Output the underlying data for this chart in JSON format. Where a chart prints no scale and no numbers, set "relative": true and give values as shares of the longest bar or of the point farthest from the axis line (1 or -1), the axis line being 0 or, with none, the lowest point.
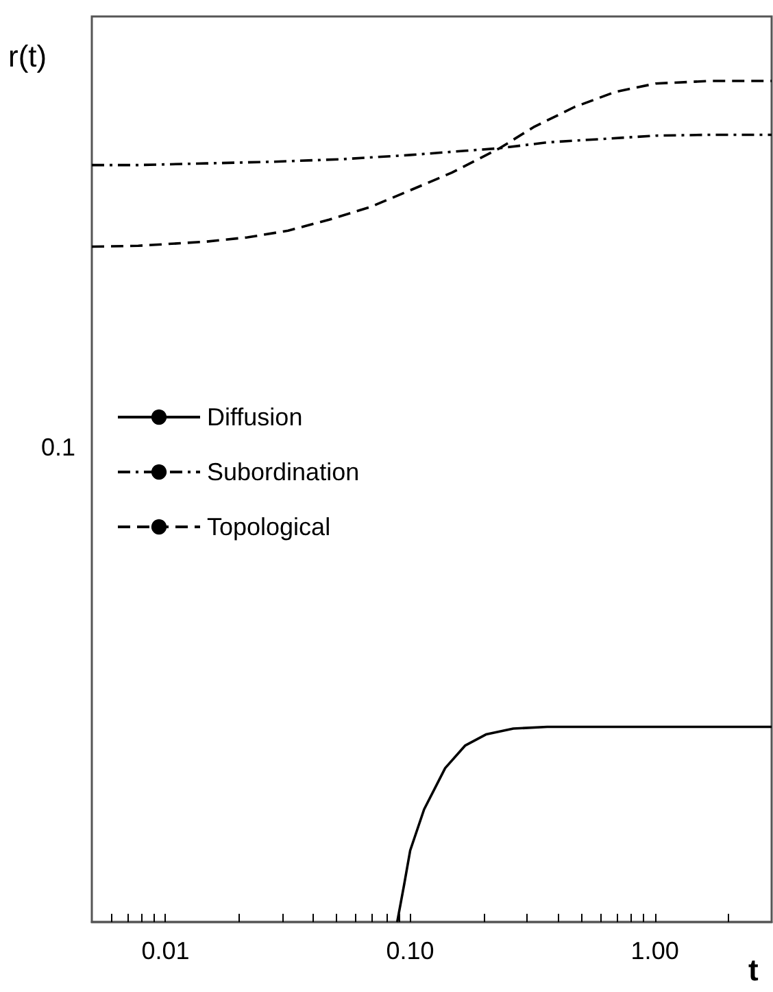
{
  "chart_data": {
    "type": "line",
    "xlabel": "t",
    "ylabel": "r(t)",
    "log": "x",
    "relative": true,
    "grid": false,
    "legend": "left",
    "marker": "none",
    "annotations": [
      "0.1"
    ],
    "xlim": [
      0.005,
      3
    ],
    "xticks": [
      {
        "value": 0.01,
        "label": "0.01"
      },
      {
        "value": 0.1,
        "label": "0.10"
      },
      {
        "value": 1,
        "label": "1.00"
      }
    ],
    "series": [
      {
        "name": "Diffusion",
        "color": "#000000",
        "line_style": "solid",
        "x": [
          0.0885,
          0.0944,
          0.1,
          0.114,
          0.139,
          0.168,
          0.204,
          0.264,
          0.363,
          3
        ],
        "values": [
          0,
          0.044,
          0.085,
          0.134,
          0.183,
          0.21,
          0.223,
          0.23,
          0.232,
          0.232
        ]
      },
      {
        "name": "Subordination",
        "color": "#000000",
        "line_style": "dashdot",
        "x": [
          0.005,
          0.00774,
          0.0147,
          0.0279,
          0.053,
          0.1,
          0.168,
          0.232,
          0.363,
          0.607,
          1.01,
          1.69,
          3
        ],
        "values": [
          0.9,
          0.9,
          0.902,
          0.904,
          0.907,
          0.912,
          0.917,
          0.92,
          0.927,
          0.931,
          0.935,
          0.936,
          0.936
        ]
      },
      {
        "name": "Topological",
        "color": "#000000",
        "line_style": "dashed",
        "x": [
          0.005,
          0.00774,
          0.0147,
          0.0216,
          0.0317,
          0.0466,
          0.0685,
          0.1,
          0.148,
          0.232,
          0.319,
          0.469,
          0.689,
          1.01,
          1.69,
          3
        ],
        "values": [
          0.803,
          0.804,
          0.809,
          0.814,
          0.822,
          0.835,
          0.85,
          0.87,
          0.891,
          0.92,
          0.945,
          0.969,
          0.987,
          0.997,
          1,
          1
        ]
      }
    ]
  }
}
